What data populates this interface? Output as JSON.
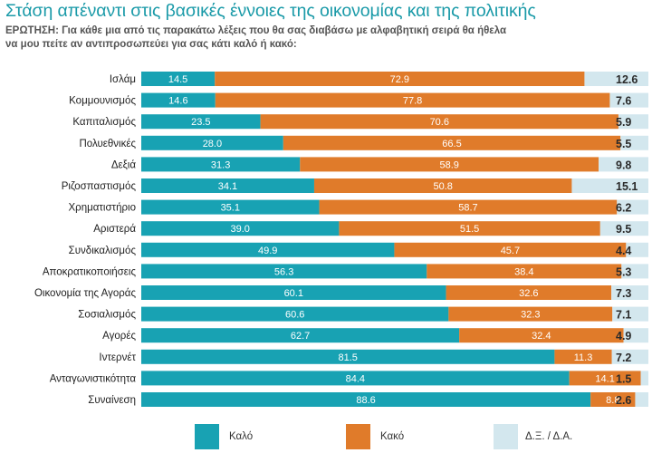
{
  "title": "Στάση απέναντι στις βασικές έννοιες της οικονομίας και της πολιτικής",
  "question": "ΕΡΩΤΗΣΗ: Για κάθε μια από τις παρακάτω λέξεις που θα σας διαβάσω με αλφαβητική σειρά θα ήθελα να μου πείτε αν αντιπροσωπεύει για σας κάτι καλό ή κακό:",
  "colors": {
    "good": "#18a2b3",
    "bad": "#e07b2a",
    "dk": "#d3e7ee"
  },
  "chart_data": {
    "type": "bar",
    "orientation": "horizontal",
    "stacked": true,
    "categories": [
      "Ισλάμ",
      "Κομμουνισμός",
      "Καπιταλισμός",
      "Πολυεθνικές",
      "Δεξιά",
      "Ριζοσπαστισμός",
      "Χρηματιστήριο",
      "Αριστερά",
      "Συνδικαλισμός",
      "Αποκρατικοποιήσεις",
      "Οικονομία της Αγοράς",
      "Σοσιαλισμός",
      "Αγορές",
      "Ιντερνέτ",
      "Ανταγωνιστικότητα",
      "Συναίνεση"
    ],
    "series": [
      {
        "name": "Καλό",
        "values": [
          14.5,
          14.6,
          23.5,
          28.0,
          31.3,
          34.1,
          35.1,
          39.0,
          49.9,
          56.3,
          60.1,
          60.6,
          62.7,
          81.5,
          84.4,
          88.6
        ]
      },
      {
        "name": "Κακό",
        "values": [
          72.9,
          77.8,
          70.6,
          66.5,
          58.9,
          50.8,
          58.7,
          51.5,
          45.7,
          38.4,
          32.6,
          32.3,
          32.4,
          11.3,
          14.1,
          8.8
        ]
      },
      {
        "name": "Δ.Ξ. / Δ.Α.",
        "values": [
          12.6,
          7.6,
          5.9,
          5.5,
          9.8,
          15.1,
          6.2,
          9.5,
          4.4,
          5.3,
          7.3,
          7.1,
          4.9,
          7.2,
          1.5,
          2.6
        ]
      }
    ],
    "xlim": [
      0,
      100
    ],
    "legend": "bottom"
  }
}
